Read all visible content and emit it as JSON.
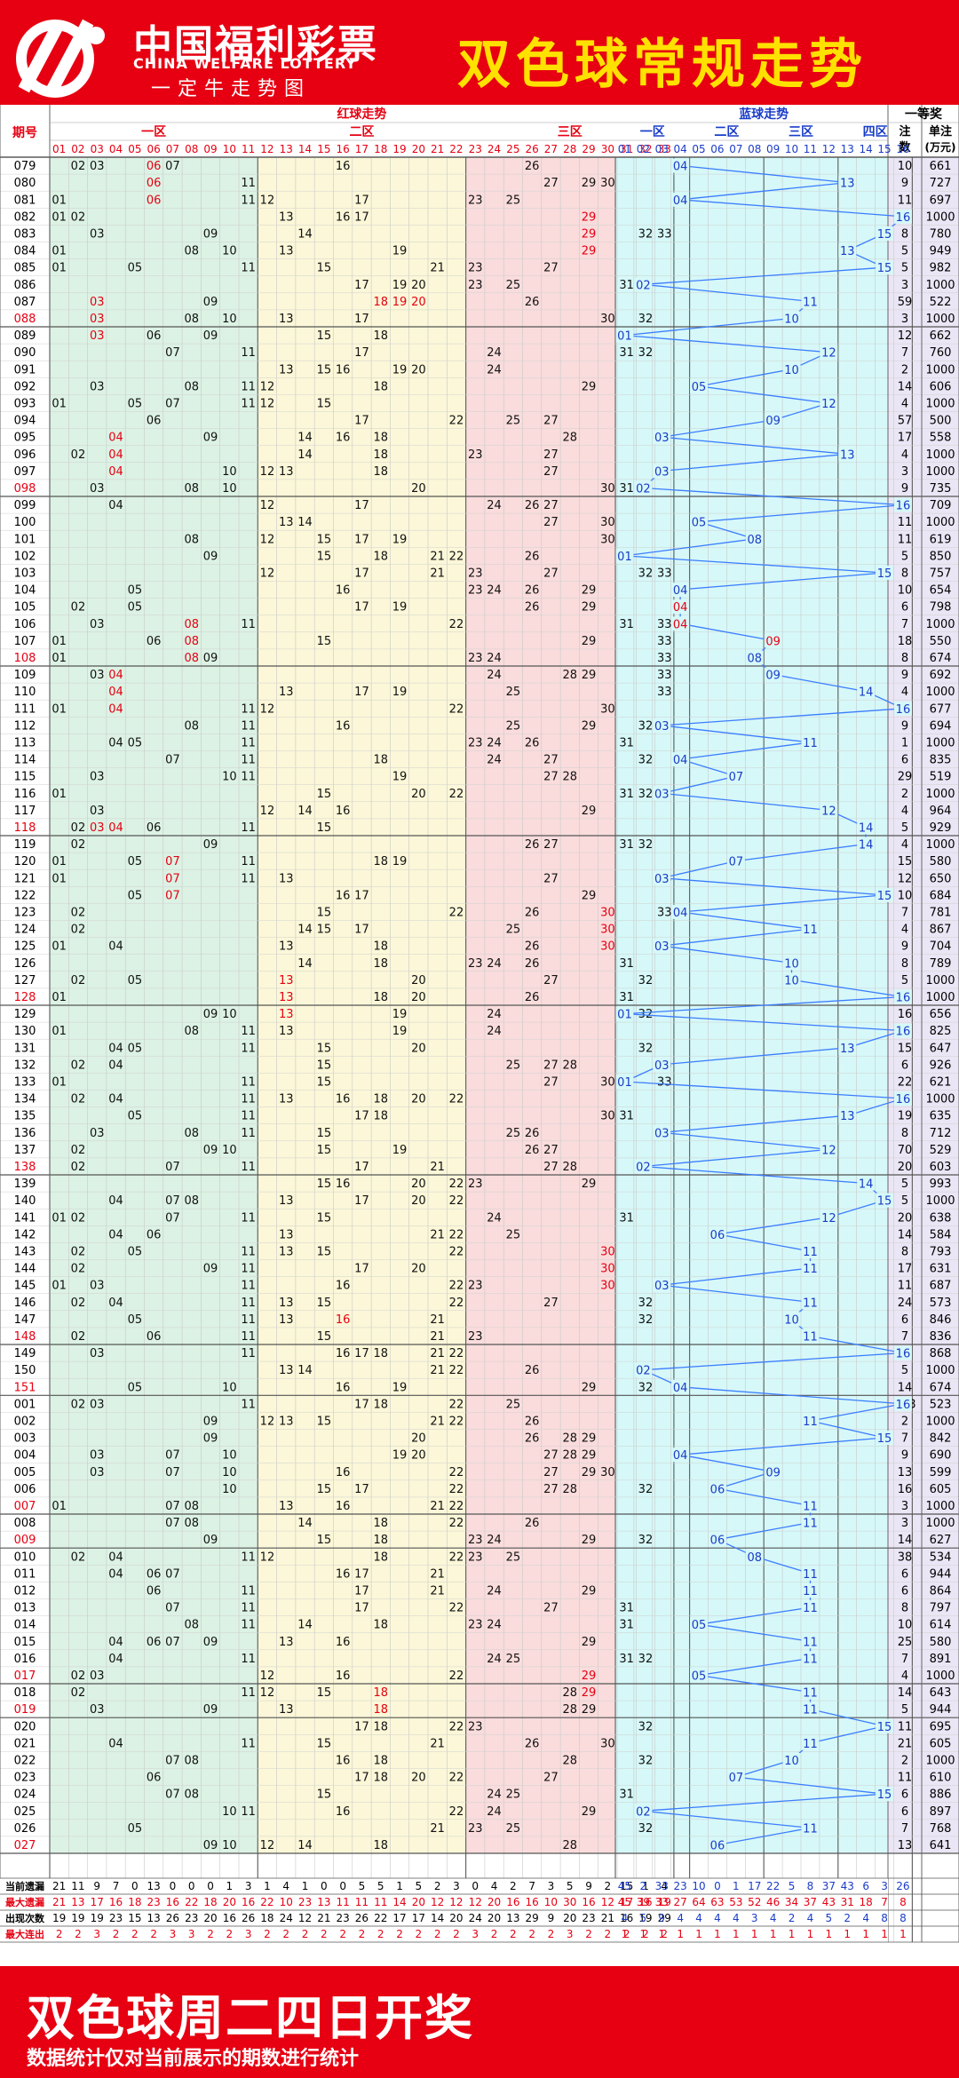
{
  "header": {
    "brand": "中国福利彩票",
    "brand_en": "CHINA WELFARE LOTTERY",
    "brand_sub": "一定牛走势图",
    "title": "双色球常规走势"
  },
  "table_header": {
    "issue": "期号",
    "red": "红球走势",
    "blue": "蓝球走势",
    "prize": "一等奖",
    "count": "注数",
    "unit": "单注(万元)",
    "red_zones": [
      "一区",
      "二区",
      "三区"
    ],
    "blue_zones": [
      "一区",
      "二区",
      "三区",
      "四区"
    ]
  },
  "colors": {
    "red_text": "#e60012",
    "blue_text": "#1a3cc8",
    "line": "#3b7dff",
    "zone1": "#dcf2e4",
    "zone2": "#fbf7d8",
    "zone3": "#fadcdc",
    "blue_bg": "#d6f8f8",
    "prize_bg": "#ebe6f5"
  },
  "chart_data": {
    "type": "table",
    "issues": [
      "079",
      "080",
      "081",
      "082",
      "083",
      "084",
      "085",
      "086",
      "087",
      "088",
      "089",
      "090",
      "091",
      "092",
      "093",
      "094",
      "095",
      "096",
      "097",
      "098",
      "099",
      "100",
      "101",
      "102",
      "103",
      "104",
      "105",
      "106",
      "107",
      "108",
      "109",
      "110",
      "111",
      "112",
      "113",
      "114",
      "115",
      "116",
      "117",
      "118",
      "119",
      "120",
      "121",
      "122",
      "123",
      "124",
      "125",
      "126",
      "127",
      "128",
      "129",
      "130",
      "131",
      "132",
      "133",
      "134",
      "135",
      "136",
      "137",
      "138",
      "139",
      "140",
      "141",
      "142",
      "143",
      "144",
      "145",
      "146",
      "147",
      "148",
      "149",
      "150",
      "151",
      "001",
      "002",
      "003",
      "004",
      "005",
      "006",
      "007",
      "008",
      "009",
      "010",
      "011",
      "012",
      "013",
      "014",
      "015",
      "016",
      "017",
      "018",
      "019",
      "020",
      "021",
      "022",
      "023",
      "024",
      "025",
      "026",
      "027"
    ],
    "reds": [
      [
        2,
        3,
        6,
        7,
        16,
        26
      ],
      [
        6,
        11,
        27,
        29,
        30
      ],
      [
        1,
        6,
        11,
        12,
        17,
        23,
        25
      ],
      [
        1,
        2,
        13,
        16,
        17,
        29
      ],
      [
        3,
        9,
        14,
        29,
        32,
        33
      ],
      [
        1,
        8,
        10,
        13,
        19,
        29
      ],
      [
        1,
        5,
        11,
        15,
        21,
        23,
        27
      ],
      [
        17,
        19,
        20,
        23,
        25,
        31
      ],
      [
        3,
        9,
        18,
        19,
        20,
        26
      ],
      [
        3,
        8,
        10,
        13,
        17,
        30,
        32
      ],
      [
        3,
        6,
        9,
        15,
        18,
        31
      ],
      [
        7,
        11,
        17,
        24,
        31,
        32
      ],
      [
        13,
        15,
        16,
        19,
        20,
        24
      ],
      [
        3,
        8,
        11,
        12,
        18,
        29
      ],
      [
        1,
        5,
        7,
        11,
        12,
        15
      ],
      [
        6,
        17,
        22,
        25,
        27
      ],
      [
        4,
        9,
        14,
        16,
        18,
        28
      ],
      [
        2,
        4,
        14,
        18,
        23,
        27
      ],
      [
        4,
        10,
        12,
        13,
        18,
        27
      ],
      [
        3,
        8,
        10,
        20,
        30,
        31
      ],
      [
        4,
        12,
        17,
        24,
        26,
        27
      ],
      [
        13,
        14,
        27,
        30
      ],
      [
        8,
        12,
        15,
        17,
        19,
        30
      ],
      [
        9,
        15,
        18,
        21,
        22,
        26
      ],
      [
        12,
        17,
        21,
        23,
        27,
        32,
        33
      ],
      [
        5,
        16,
        23,
        24,
        26,
        29
      ],
      [
        2,
        5,
        17,
        19,
        26,
        29
      ],
      [
        3,
        8,
        11,
        22,
        31,
        33
      ],
      [
        1,
        6,
        8,
        15,
        29,
        33
      ],
      [
        1,
        8,
        9,
        23,
        24,
        33
      ],
      [
        3,
        4,
        24,
        28,
        29,
        33
      ],
      [
        4,
        13,
        17,
        19,
        25,
        33
      ],
      [
        1,
        4,
        11,
        12,
        22,
        30
      ],
      [
        8,
        11,
        16,
        25,
        29,
        32
      ],
      [
        4,
        5,
        11,
        23,
        24,
        26,
        31
      ],
      [
        7,
        11,
        18,
        24,
        27,
        32
      ],
      [
        3,
        10,
        11,
        19,
        27,
        28
      ],
      [
        1,
        15,
        20,
        22,
        31,
        32
      ],
      [
        3,
        12,
        14,
        16,
        29
      ],
      [
        2,
        3,
        4,
        6,
        11,
        15
      ],
      [
        2,
        9,
        26,
        27,
        31,
        32
      ],
      [
        1,
        5,
        7,
        11,
        18,
        19
      ],
      [
        1,
        7,
        11,
        13,
        27,
        33
      ],
      [
        5,
        7,
        16,
        17,
        29
      ],
      [
        2,
        15,
        22,
        26,
        30,
        33
      ],
      [
        2,
        14,
        15,
        17,
        25,
        30
      ],
      [
        1,
        4,
        13,
        18,
        26,
        30
      ],
      [
        14,
        18,
        23,
        24,
        26,
        31
      ],
      [
        2,
        5,
        13,
        20,
        27,
        32
      ],
      [
        1,
        13,
        18,
        20,
        26,
        31
      ],
      [
        9,
        10,
        13,
        19,
        24,
        32
      ],
      [
        1,
        8,
        11,
        13,
        19,
        24
      ],
      [
        4,
        5,
        11,
        15,
        20,
        32
      ],
      [
        2,
        4,
        15,
        25,
        27,
        28,
        33
      ],
      [
        1,
        11,
        15,
        27,
        30,
        33
      ],
      [
        2,
        4,
        11,
        13,
        16,
        18,
        20,
        22
      ],
      [
        5,
        11,
        17,
        18,
        30,
        31
      ],
      [
        3,
        8,
        11,
        15,
        25,
        26
      ],
      [
        2,
        9,
        10,
        15,
        19,
        26,
        27
      ],
      [
        2,
        7,
        11,
        17,
        21,
        27,
        28
      ],
      [
        15,
        16,
        20,
        22,
        23,
        29
      ],
      [
        4,
        7,
        8,
        13,
        17,
        20,
        22
      ],
      [
        1,
        2,
        7,
        11,
        15,
        24,
        31
      ],
      [
        4,
        6,
        13,
        21,
        22,
        25
      ],
      [
        2,
        5,
        11,
        13,
        15,
        22,
        30
      ],
      [
        2,
        9,
        11,
        17,
        20,
        30
      ],
      [
        1,
        3,
        11,
        16,
        22,
        23,
        30
      ],
      [
        2,
        4,
        11,
        13,
        15,
        22,
        27,
        32
      ],
      [
        5,
        11,
        13,
        16,
        21,
        32
      ],
      [
        2,
        6,
        11,
        15,
        21,
        23
      ],
      [
        3,
        11,
        16,
        17,
        18,
        21,
        22
      ],
      [
        13,
        14,
        21,
        22,
        26,
        32
      ],
      [
        5,
        10,
        16,
        19,
        29,
        32
      ],
      [
        2,
        3,
        11,
        17,
        18,
        22,
        25
      ],
      [
        9,
        12,
        13,
        15,
        21,
        22,
        26
      ],
      [
        9,
        20,
        26,
        28,
        29
      ],
      [
        3,
        7,
        10,
        19,
        20,
        27,
        28,
        29
      ],
      [
        3,
        7,
        10,
        16,
        22,
        27,
        29,
        30
      ],
      [
        10,
        15,
        17,
        22,
        27,
        28,
        32
      ],
      [
        1,
        7,
        8,
        13,
        16,
        21,
        22
      ],
      [
        7,
        8,
        14,
        18,
        22,
        26
      ],
      [
        9,
        15,
        18,
        23,
        24,
        29,
        32
      ],
      [
        2,
        4,
        11,
        12,
        18,
        22,
        23,
        25
      ],
      [
        4,
        6,
        7,
        16,
        17,
        21
      ],
      [
        6,
        11,
        17,
        21,
        24,
        29
      ],
      [
        7,
        11,
        17,
        22,
        27,
        31
      ],
      [
        8,
        11,
        14,
        18,
        23,
        24,
        31
      ],
      [
        4,
        6,
        7,
        9,
        13,
        16,
        29
      ],
      [
        4,
        11,
        24,
        25,
        31,
        32
      ],
      [
        2,
        3,
        12,
        16,
        22,
        29
      ],
      [
        2,
        11,
        12,
        15,
        18,
        28,
        29
      ],
      [
        3,
        9,
        13,
        18,
        28,
        29
      ],
      [
        17,
        18,
        22,
        23,
        32
      ],
      [
        4,
        11,
        15,
        21,
        26,
        30
      ],
      [
        7,
        8,
        16,
        18,
        28,
        32
      ],
      [
        6,
        17,
        18,
        20,
        22,
        27
      ],
      [
        7,
        8,
        15,
        24,
        25,
        31
      ],
      [
        10,
        11,
        16,
        22,
        24,
        29
      ],
      [
        5,
        21,
        23,
        25,
        32
      ],
      [
        9,
        10,
        12,
        14,
        18,
        28
      ],
      [
        5,
        7,
        11,
        15,
        16,
        32
      ]
    ],
    "red_highlight": [
      [
        6
      ],
      [
        6
      ],
      [
        6
      ],
      [
        29
      ],
      [
        29
      ],
      [
        29
      ],
      [],
      [],
      [
        3,
        18,
        19,
        20
      ],
      [
        3
      ],
      [
        3
      ],
      [],
      [],
      [],
      [],
      [],
      [
        4
      ],
      [
        4
      ],
      [
        4
      ],
      [],
      [],
      [],
      [],
      [],
      [],
      [],
      [],
      [
        8
      ],
      [
        8
      ],
      [
        8
      ],
      [
        4
      ],
      [
        4
      ],
      [
        4
      ],
      [],
      [],
      [],
      [],
      [],
      [],
      [
        3,
        4
      ],
      [],
      [
        7
      ],
      [
        7
      ],
      [
        7
      ],
      [
        30
      ],
      [
        30
      ],
      [
        30
      ],
      [],
      [
        13
      ],
      [
        13
      ],
      [
        13
      ],
      [],
      [],
      [],
      [],
      [],
      [],
      [],
      [],
      [],
      [],
      [],
      [],
      [],
      [
        30
      ],
      [
        30
      ],
      [
        30
      ],
      [],
      [
        16
      ],
      [
        16,
        17,
        18
      ],
      [],
      [],
      [],
      [],
      [],
      [],
      [],
      [],
      [],
      [],
      [],
      [],
      [],
      [],
      [],
      [],
      [],
      [],
      [
        29
      ],
      [
        29
      ],
      [
        18,
        29
      ],
      [
        18
      ],
      [],
      [],
      [],
      [],
      [],
      [],
      [],
      []
    ],
    "blues": [
      4,
      13,
      4,
      16,
      15,
      13,
      15,
      2,
      11,
      10,
      1,
      12,
      10,
      5,
      12,
      9,
      3,
      13,
      3,
      2,
      16,
      5,
      8,
      1,
      15,
      4,
      4,
      4,
      9,
      8,
      9,
      14,
      16,
      3,
      11,
      4,
      7,
      3,
      12,
      14,
      14,
      7,
      3,
      15,
      4,
      11,
      3,
      10,
      10,
      16,
      1,
      16,
      13,
      3,
      1,
      16,
      13,
      3,
      12,
      2,
      14,
      15,
      12,
      6,
      11,
      11,
      3,
      11,
      10,
      11,
      16,
      2,
      4,
      16,
      11,
      15,
      4,
      9,
      6,
      11,
      11,
      6,
      8,
      11,
      11,
      11,
      5,
      11,
      11,
      5,
      11,
      11,
      15,
      11,
      10,
      7,
      15,
      2,
      11,
      6
    ],
    "blue_highlight": [
      26,
      27,
      28
    ],
    "prize_count": [
      10,
      9,
      11,
      3,
      8,
      5,
      5,
      3,
      59,
      3,
      12,
      7,
      2,
      14,
      4,
      57,
      17,
      4,
      3,
      9,
      9,
      11,
      11,
      5,
      8,
      10,
      6,
      7,
      18,
      8,
      9,
      4,
      11,
      9,
      1,
      6,
      29,
      2,
      4,
      5,
      4,
      15,
      12,
      10,
      7,
      4,
      9,
      8,
      5,
      2,
      16,
      9,
      15,
      6,
      22,
      2,
      19,
      8,
      70,
      20,
      5,
      5,
      20,
      14,
      8,
      17,
      11,
      24,
      6,
      7,
      6,
      5,
      14,
      108,
      2,
      7,
      9,
      13,
      16,
      3,
      3,
      14,
      38,
      6,
      6,
      8,
      10,
      25,
      7,
      4,
      14,
      5,
      11,
      21,
      2,
      11,
      6,
      6,
      7,
      13
    ],
    "prize_amount": [
      661,
      727,
      697,
      1000,
      780,
      949,
      982,
      1000,
      522,
      1000,
      662,
      760,
      1000,
      606,
      1000,
      500,
      558,
      1000,
      1000,
      735,
      709,
      1000,
      619,
      850,
      757,
      654,
      798,
      1000,
      550,
      674,
      692,
      1000,
      677,
      694,
      1000,
      835,
      519,
      1000,
      964,
      929,
      1000,
      580,
      650,
      684,
      781,
      867,
      704,
      789,
      1000,
      1000,
      656,
      825,
      647,
      926,
      621,
      1000,
      635,
      712,
      529,
      603,
      993,
      1000,
      638,
      584,
      793,
      631,
      687,
      573,
      846,
      836,
      868,
      1000,
      674,
      523,
      1000,
      842,
      690,
      599,
      605,
      1000,
      1000,
      627,
      534,
      944,
      864,
      797,
      614,
      580,
      891,
      1000,
      643,
      944,
      695,
      605,
      1000,
      610,
      886,
      897,
      768,
      641
    ],
    "stats": {
      "labels": [
        "当前遗漏",
        "最大遗漏",
        "出现次数",
        "最大连出"
      ],
      "red": [
        [
          21,
          11,
          9,
          7,
          0,
          13,
          0,
          0,
          0,
          1,
          3,
          1,
          4,
          1,
          0,
          0,
          5,
          5,
          1,
          5,
          2,
          3,
          0,
          4,
          2,
          7,
          3,
          5,
          9,
          2,
          15,
          1,
          4
        ],
        [
          21,
          13,
          17,
          16,
          18,
          23,
          16,
          22,
          18,
          20,
          16,
          22,
          10,
          23,
          13,
          11,
          11,
          11,
          14,
          20,
          12,
          12,
          12,
          20,
          16,
          16,
          10,
          30,
          16,
          12,
          17,
          16,
          19
        ],
        [
          19,
          19,
          19,
          23,
          15,
          13,
          26,
          23,
          20,
          16,
          26,
          18,
          24,
          12,
          21,
          23,
          26,
          22,
          17,
          17,
          14,
          20,
          24,
          20,
          13,
          29,
          9,
          20,
          23,
          21,
          16,
          19,
          29
        ],
        [
          2,
          2,
          3,
          2,
          2,
          2,
          3,
          3,
          2,
          2,
          3,
          2,
          2,
          2,
          2,
          2,
          2,
          2,
          2,
          2,
          2,
          2,
          3,
          2,
          2,
          2,
          2,
          3,
          2,
          2,
          2,
          2,
          2
        ]
      ],
      "blue": [
        [
          45,
          2,
          33,
          23,
          10,
          0,
          1,
          17,
          22,
          5,
          8,
          37,
          43,
          6,
          3,
          26
        ],
        [
          45,
          39,
          33,
          27,
          64,
          63,
          53,
          52,
          46,
          34,
          37,
          43,
          31,
          18,
          7,
          8
        ],
        [
          4,
          5,
          9,
          4,
          4,
          4,
          4,
          3,
          4,
          2,
          4,
          5,
          2,
          4,
          8,
          8
        ],
        [
          1,
          1,
          1,
          1,
          1,
          1,
          1,
          1,
          1,
          1,
          1,
          1,
          1,
          1,
          1,
          1
        ]
      ]
    }
  },
  "footer": {
    "title": "双色球周二四日开奖",
    "note": "数据统计仅对当前展示的期数进行统计"
  }
}
